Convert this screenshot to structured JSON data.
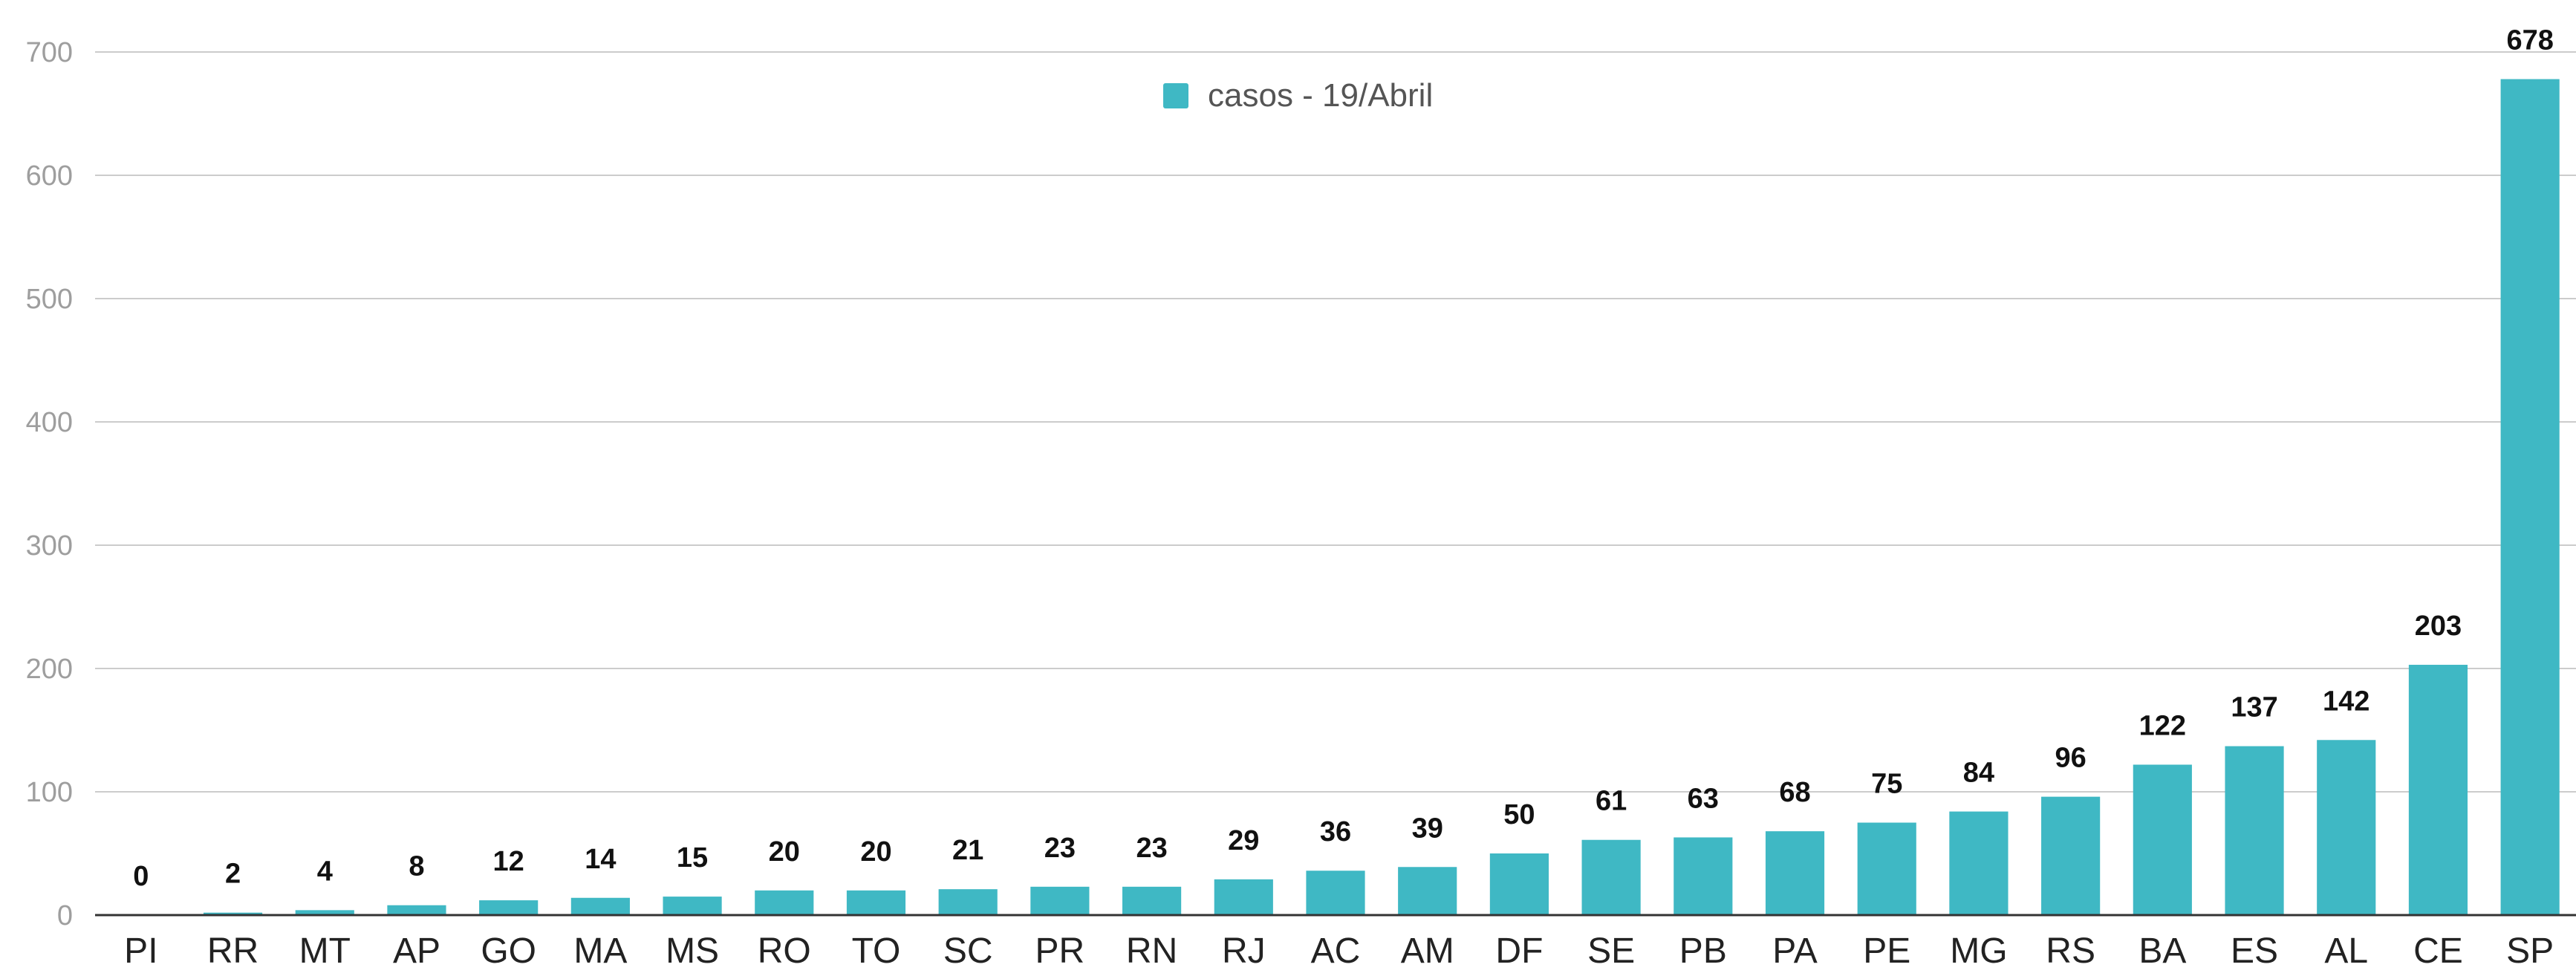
{
  "chart_data": {
    "type": "bar",
    "title": "",
    "xlabel": "",
    "ylabel": "",
    "ylim": [
      0,
      700
    ],
    "yticks": [
      "0",
      "100",
      "200",
      "300",
      "400",
      "500",
      "600",
      "700"
    ],
    "grid": true,
    "legend_position": "top-center",
    "categories": [
      "PI",
      "RR",
      "MT",
      "AP",
      "GO",
      "MA",
      "MS",
      "RO",
      "TO",
      "SC",
      "PR",
      "RN",
      "RJ",
      "AC",
      "AM",
      "DF",
      "SE",
      "PB",
      "PA",
      "PE",
      "MG",
      "RS",
      "BA",
      "ES",
      "AL",
      "CE",
      "SP"
    ],
    "series": [
      {
        "name": "casos - 19/Abril",
        "color": "#3FB8C4",
        "values": [
          0,
          2,
          4,
          8,
          12,
          14,
          15,
          20,
          20,
          21,
          23,
          23,
          29,
          36,
          39,
          50,
          61,
          63,
          68,
          75,
          84,
          96,
          122,
          137,
          142,
          203,
          678
        ]
      }
    ]
  }
}
